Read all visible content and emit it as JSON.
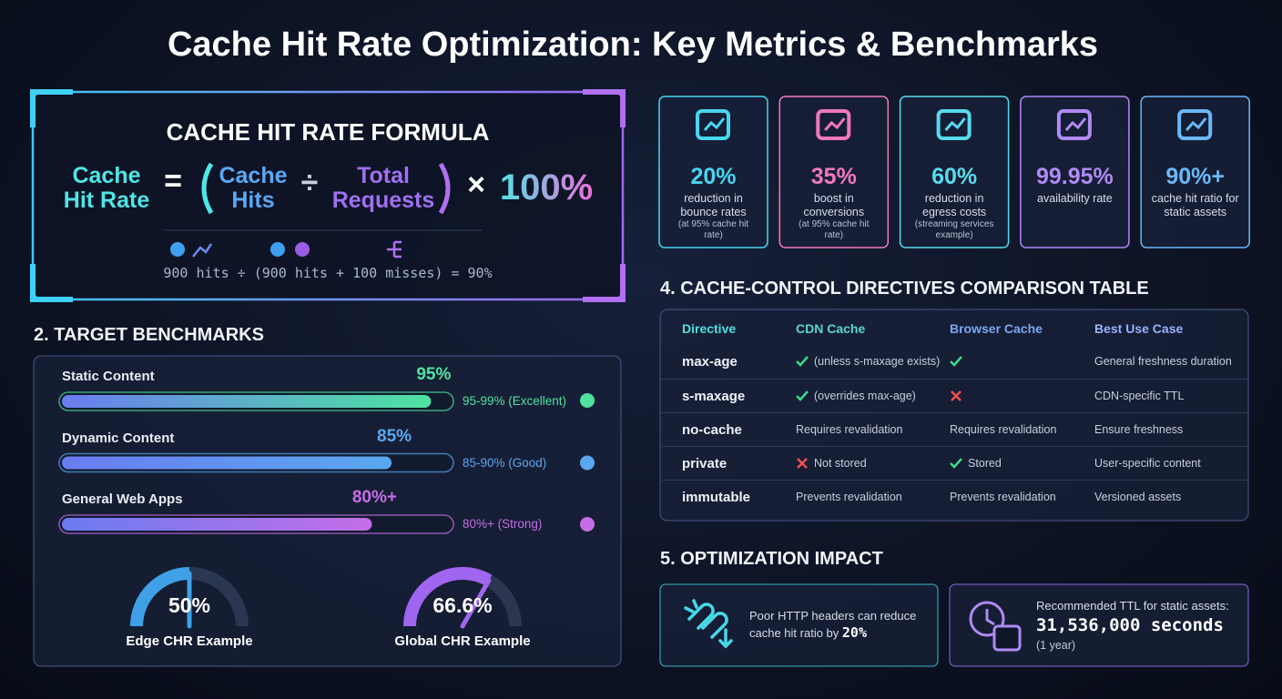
{
  "title": "Cache Hit Rate Optimization: Key Metrics & Benchmarks",
  "formula": {
    "heading": "CACHE HIT RATE FORMULA",
    "result": "Cache Hit Rate",
    "equals": "=",
    "numerator": "Cache Hits",
    "divide": "÷",
    "denominator": "Total Requests",
    "times": "×",
    "multiplier": "100%",
    "example": "900 hits ÷ (900 hits + 100 misses) = 90%"
  },
  "benchmarks": {
    "heading": "2. TARGET BENCHMARKS",
    "bars": [
      {
        "label": "Static Content",
        "value": 95,
        "value_label": "95%",
        "range": "95-99% (Excellent)",
        "color": "#4fe3a0"
      },
      {
        "label": "Dynamic Content",
        "value": 85,
        "value_label": "85%",
        "range": "85-90% (Good)",
        "color": "#5aa8f0"
      },
      {
        "label": "General Web Apps",
        "value": 80,
        "value_label": "80%+",
        "range": "80%+ (Strong)",
        "color": "#c46ee8"
      }
    ],
    "gauges": [
      {
        "label": "Edge CHR Example",
        "value": 50,
        "value_label": "50%",
        "color": "#3fa0e8"
      },
      {
        "label": "Global CHR Example",
        "value": 66.6,
        "value_label": "66.6%",
        "color": "#a066f0"
      }
    ]
  },
  "stats": [
    {
      "value": "20%",
      "text": "reduction in bounce rates",
      "note": "(at 95% cache hit rate)",
      "color": "#48d6f0"
    },
    {
      "value": "35%",
      "text": "boost in conversions",
      "note": "(at 95% cache hit rate)",
      "color": "#f07ab8"
    },
    {
      "value": "60%",
      "text": "reduction in egress costs",
      "note": "(streaming services example)",
      "color": "#56dcec"
    },
    {
      "value": "99.95%",
      "text": "availability rate",
      "color": "#b08af5"
    },
    {
      "value": "90%+",
      "text": "cache hit ratio for static assets",
      "color": "#6ab8f8"
    }
  ],
  "table": {
    "heading": "4. CACHE-CONTROL DIRECTIVES COMPARISON TABLE",
    "columns": [
      "Directive",
      "CDN Cache",
      "Browser Cache",
      "Best Use Case"
    ],
    "rows": [
      [
        "max-age",
        "(unless s-maxage exists)",
        "",
        "General freshness duration"
      ],
      [
        "s-maxage",
        "(overrides max-age)",
        "",
        "CDN-specific TTL"
      ],
      [
        "no-cache",
        "Requires revalidation",
        "Requires revalidation",
        "Ensure freshness"
      ],
      [
        "private",
        "Not stored",
        "Stored",
        "User-specific content"
      ],
      [
        "immutable",
        "Prevents revalidation",
        "Prevents revalidation",
        "Versioned assets"
      ]
    ]
  },
  "impact": {
    "heading": "5. OPTIMIZATION IMPACT",
    "cards": [
      {
        "text": "Poor HTTP headers can reduce cache hit ratio by",
        "highlight": "20%"
      },
      {
        "text": "Recommended TTL for static assets:",
        "highlight": "31,536,000 seconds",
        "note": "(1 year)"
      }
    ]
  }
}
